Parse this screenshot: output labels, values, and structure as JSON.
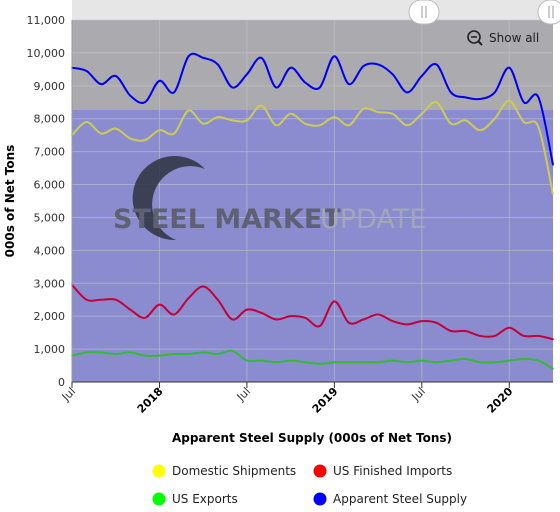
{
  "chart_data": {
    "type": "line",
    "title": "",
    "xlabel": "Apparent Steel Supply (000s of Net Tons)",
    "ylabel": "000s of Net Tons",
    "ylim": [
      0,
      11000
    ],
    "y_ticks": [
      "0",
      "1,000",
      "2,000",
      "3,000",
      "4,000",
      "5,000",
      "6,000",
      "7,000",
      "8,000",
      "9,000",
      "10,000",
      "11,000"
    ],
    "x": [
      "2017-07",
      "2017-08",
      "2017-09",
      "2017-10",
      "2017-11",
      "2017-12",
      "2018-01",
      "2018-02",
      "2018-03",
      "2018-04",
      "2018-05",
      "2018-06",
      "2018-07",
      "2018-08",
      "2018-09",
      "2018-10",
      "2018-11",
      "2018-12",
      "2019-01",
      "2019-02",
      "2019-03",
      "2019-04",
      "2019-05",
      "2019-06",
      "2019-07",
      "2019-08",
      "2019-09",
      "2019-10",
      "2019-11",
      "2019-12",
      "2020-01",
      "2020-02",
      "2020-03",
      "2020-04"
    ],
    "x_tick_labels": [
      {
        "label": "Jul",
        "at": "2017-07",
        "major": false
      },
      {
        "label": "2018",
        "at": "2018-01",
        "major": true
      },
      {
        "label": "Jul",
        "at": "2018-07",
        "major": false
      },
      {
        "label": "2019",
        "at": "2019-01",
        "major": true
      },
      {
        "label": "Jul",
        "at": "2019-07",
        "major": false
      },
      {
        "label": "2020",
        "at": "2020-01",
        "major": true
      }
    ],
    "series": [
      {
        "name": "Domestic Shipments",
        "color": "#ffff00",
        "line_color": "#cccc55",
        "values": [
          7500,
          7900,
          7550,
          7700,
          7400,
          7350,
          7650,
          7550,
          8250,
          7850,
          8050,
          7950,
          7950,
          8400,
          7800,
          8150,
          7850,
          7800,
          8050,
          7800,
          8300,
          8200,
          8150,
          7800,
          8150,
          8500,
          7850,
          7950,
          7650,
          8000,
          8550,
          7900,
          7750,
          5700
        ]
      },
      {
        "name": "US Finished Imports",
        "color": "#ff0000",
        "line_color": "#c4003c",
        "values": [
          2950,
          2500,
          2500,
          2500,
          2200,
          1950,
          2350,
          2050,
          2550,
          2900,
          2500,
          1900,
          2200,
          2100,
          1900,
          2000,
          1950,
          1700,
          2450,
          1800,
          1900,
          2050,
          1850,
          1750,
          1850,
          1800,
          1550,
          1550,
          1400,
          1400,
          1650,
          1400,
          1400,
          1300
        ]
      },
      {
        "name": "US Exports",
        "color": "#00ff00",
        "line_color": "#33bb33",
        "values": [
          800,
          900,
          900,
          850,
          900,
          800,
          800,
          850,
          850,
          900,
          850,
          950,
          650,
          650,
          600,
          650,
          600,
          550,
          600,
          600,
          600,
          600,
          650,
          600,
          650,
          600,
          650,
          700,
          600,
          600,
          650,
          700,
          650,
          400
        ]
      },
      {
        "name": "Apparent Steel Supply",
        "color": "#0000ff",
        "line_color": "#0000ee",
        "values": [
          9550,
          9450,
          9050,
          9300,
          8700,
          8500,
          9150,
          8800,
          9900,
          9850,
          9650,
          8950,
          9350,
          9850,
          8950,
          9550,
          9100,
          8950,
          9900,
          9050,
          9600,
          9650,
          9350,
          8800,
          9300,
          9650,
          8800,
          8650,
          8600,
          8800,
          9550,
          8500,
          8650,
          6600
        ]
      }
    ],
    "legend_position": "bottom",
    "grid": true,
    "plot_background": "#8a8ccf",
    "navigator_shade": "#adadad",
    "watermark": {
      "bold": "STEEL MARKET",
      "light": "UPDATE"
    }
  },
  "controls": {
    "show_all_label": "Show all"
  },
  "icons": {
    "zoom_out": "zoom-out-icon",
    "slider_grip": "grip-icon"
  }
}
